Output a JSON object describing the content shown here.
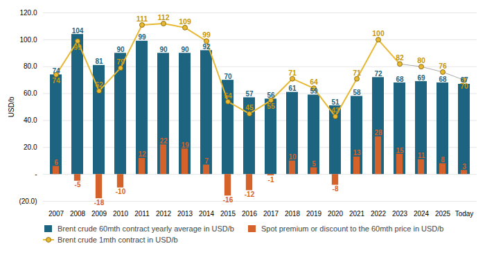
{
  "chart_data": {
    "type": "bar",
    "ylabel": "USD/b",
    "categories": [
      "2007",
      "2008",
      "2009",
      "2010",
      "2011",
      "2012",
      "2013",
      "2014",
      "2015",
      "2016",
      "2017",
      "2018",
      "2019",
      "2020",
      "2021",
      "2022",
      "2023",
      "2024",
      "2025",
      "Today"
    ],
    "series": [
      {
        "name": "Brent crude 60mth contract yearly average in USD/b",
        "type": "bar",
        "color": "#1d6480",
        "values": [
          74,
          104,
          81,
          90,
          99,
          90,
          90,
          92,
          70,
          57,
          56,
          61,
          59,
          51,
          58,
          72,
          68,
          69,
          68,
          67
        ]
      },
      {
        "name": "Spot premium or discount to the 60mth price in USD/b",
        "type": "bar",
        "color": "#d4622a",
        "values": [
          6,
          -5,
          -18,
          -10,
          12,
          22,
          19,
          7,
          -16,
          -12,
          -1,
          10,
          5,
          -8,
          13,
          28,
          15,
          11,
          8,
          3
        ]
      },
      {
        "name": "Brent crude 1mth contract in USD/b",
        "type": "line",
        "color": "#e8b832",
        "marker": "circle",
        "colors": [
          "#e8b832",
          "#e8b832",
          "#e8b832",
          "#e8b832",
          "#e8b832",
          "#e8b832",
          "#e8b832",
          "#e8b832",
          "#e8b832",
          "#e8b832",
          "#e8b832",
          "#e8b832",
          "#e8b832",
          "#e8b832",
          "#e8b832",
          "#e8b832",
          "#e8b832",
          "#aaaaaa",
          "#aaaaaa",
          "#aaaaaa"
        ],
        "values": [
          74,
          99,
          62,
          79,
          111,
          112,
          109,
          99,
          54,
          45,
          55,
          71,
          64,
          43,
          71,
          100,
          82,
          80,
          76,
          70
        ]
      }
    ],
    "ylim": [
      -20,
      120
    ],
    "yticks": [
      {
        "value": -20,
        "label": "(20.0)"
      },
      {
        "value": 0,
        "label": "-"
      },
      {
        "value": 20,
        "label": "20.0"
      },
      {
        "value": 40,
        "label": "40.0"
      },
      {
        "value": 60,
        "label": "60.0"
      },
      {
        "value": 80,
        "label": "80.0"
      },
      {
        "value": 100,
        "label": "100.0"
      },
      {
        "value": 120,
        "label": "120.0"
      }
    ],
    "grid": true,
    "legend": "bottom",
    "data_labels": true
  }
}
